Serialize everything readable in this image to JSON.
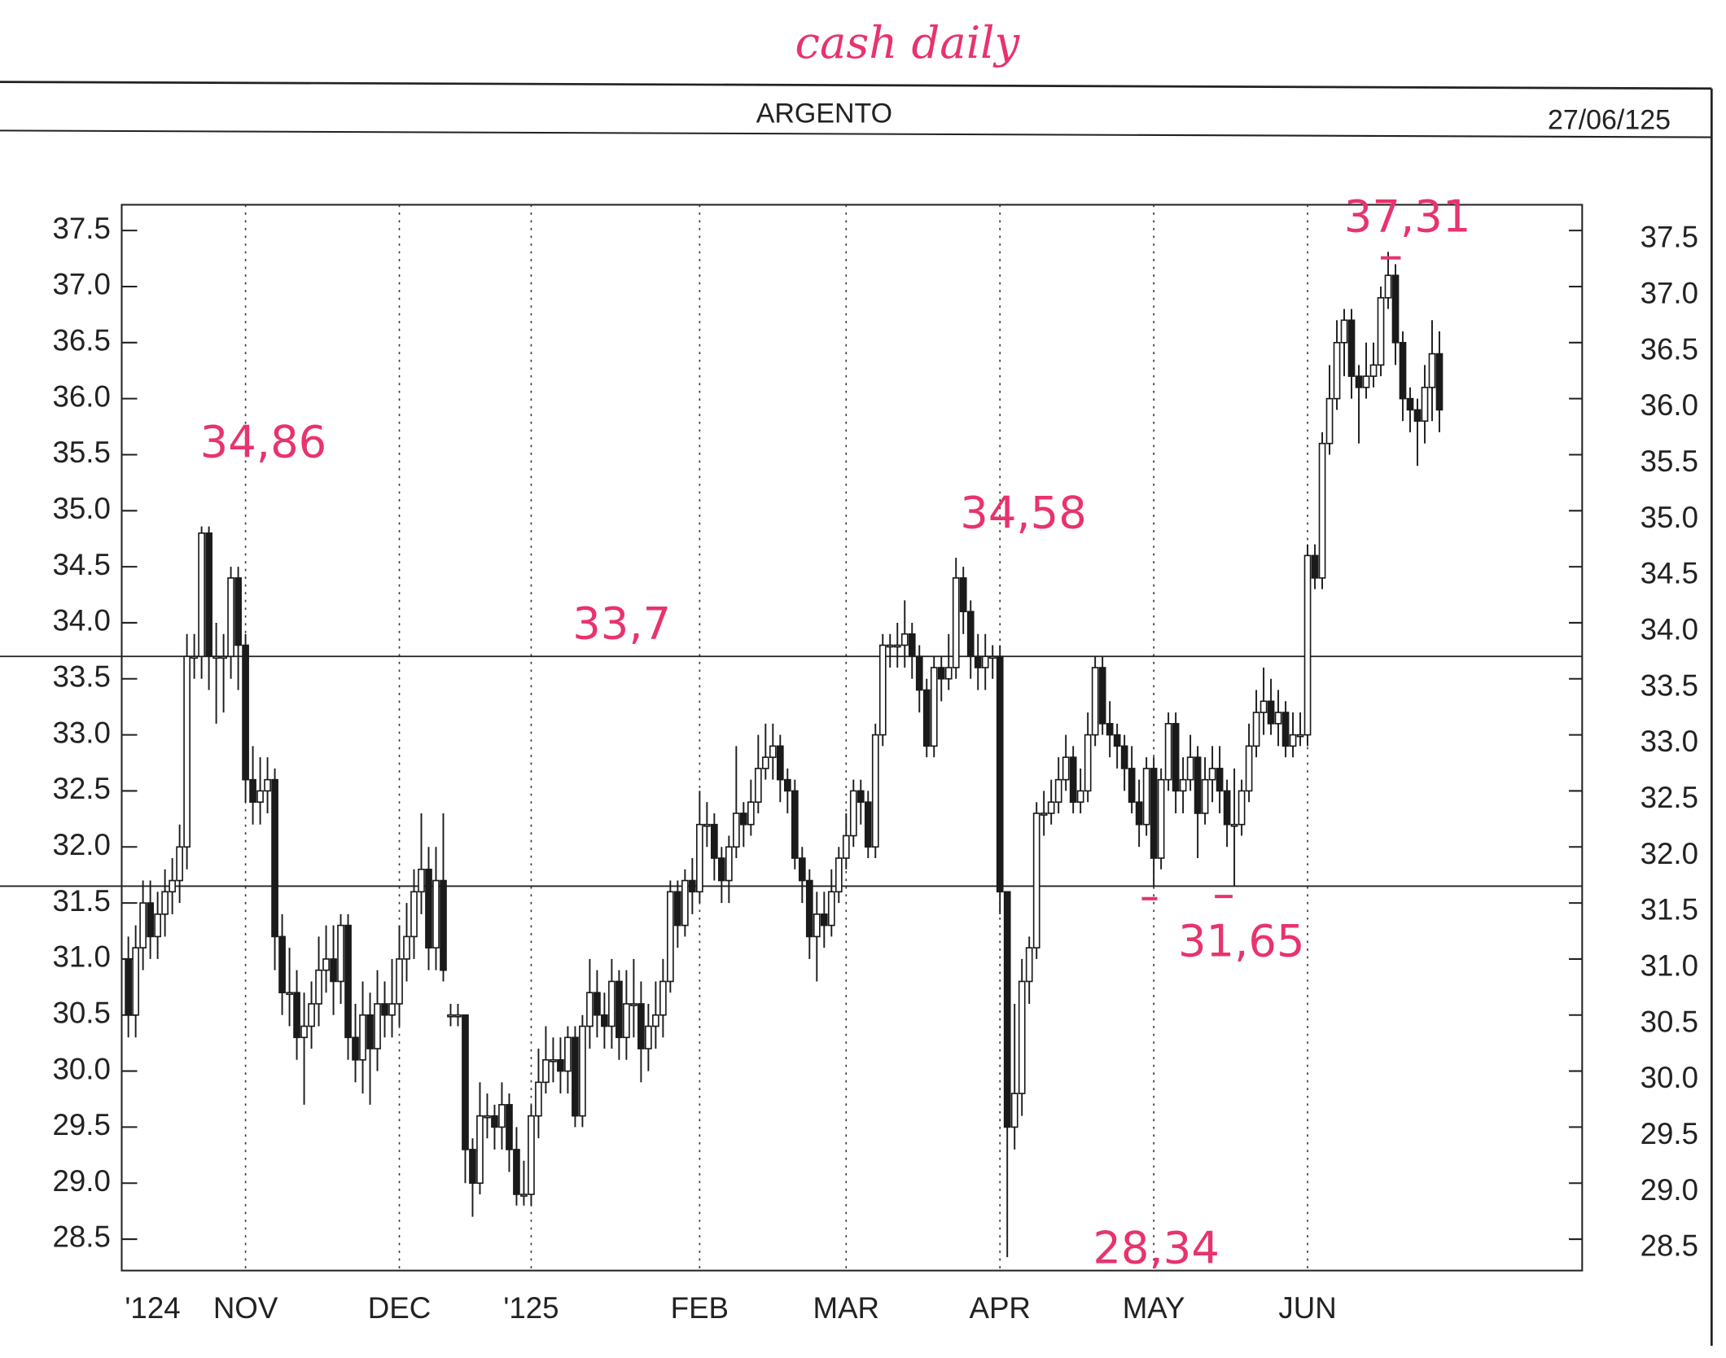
{
  "chart_data": {
    "type": "candlestick",
    "note": "cash daily",
    "title": "ARGENTO",
    "date_label": "27/06/125",
    "categories": [
      "'124",
      null,
      null,
      null,
      null,
      null,
      null,
      null,
      null,
      null,
      null,
      null,
      null,
      null,
      null,
      null,
      "NOV",
      null,
      null,
      null,
      null,
      null,
      null,
      null,
      null,
      null,
      null,
      null,
      null,
      null,
      null,
      null,
      null,
      null,
      null,
      null,
      null,
      "DEC",
      null,
      null,
      null,
      null,
      null,
      null,
      null,
      null,
      null,
      null,
      null,
      null,
      null,
      null,
      null,
      null,
      null,
      "'125",
      null,
      null,
      null,
      null,
      null,
      null,
      null,
      null,
      null,
      null,
      null,
      null,
      null,
      null,
      null,
      null,
      null,
      null,
      null,
      null,
      null,
      null,
      "FEB",
      null,
      null,
      null,
      null,
      null,
      null,
      null,
      null,
      null,
      null,
      null,
      null,
      null,
      null,
      null,
      null,
      null,
      null,
      null,
      "MAR",
      null,
      null,
      null,
      null,
      null,
      null,
      null,
      null,
      null,
      null,
      null,
      null,
      null,
      null,
      null,
      null,
      null,
      null,
      null,
      null,
      "APR",
      null,
      null,
      null,
      null,
      null,
      null,
      null,
      null,
      null,
      null,
      null,
      null,
      null,
      null,
      null,
      null,
      null,
      null,
      null,
      null,
      "MAY",
      null,
      null,
      null,
      null,
      null,
      null,
      null,
      null,
      null,
      null,
      null,
      null,
      null,
      null,
      null,
      null,
      null,
      null,
      null,
      null,
      "JUN",
      null,
      null,
      null,
      null,
      null,
      null,
      null,
      null,
      null,
      null,
      null,
      null,
      null,
      null,
      null,
      null,
      null,
      null
    ],
    "open": [
      31.0,
      30.5,
      31.1,
      31.5,
      31.2,
      31.4,
      31.6,
      31.7,
      32.0,
      33.7,
      33.7,
      34.8,
      33.7,
      33.7,
      33.7,
      34.4,
      33.8,
      32.6,
      32.4,
      32.5,
      32.6,
      31.2,
      30.7,
      30.7,
      30.3,
      30.4,
      30.6,
      30.9,
      31.0,
      30.8,
      31.3,
      30.3,
      30.1,
      30.5,
      30.2,
      30.6,
      30.5,
      30.6,
      31.0,
      31.2,
      31.6,
      31.8,
      31.1,
      31.7,
      30.5,
      30.5,
      30.5,
      29.3,
      29.0,
      29.6,
      29.6,
      29.5,
      29.7,
      29.3,
      28.9,
      28.9,
      29.6,
      29.9,
      30.1,
      30.1,
      30.0,
      30.3,
      29.6,
      30.4,
      30.7,
      30.5,
      30.4,
      30.8,
      30.3,
      30.6,
      30.6,
      30.2,
      30.4,
      30.5,
      30.8,
      31.6,
      31.3,
      31.7,
      31.6,
      32.2,
      32.2,
      31.9,
      31.7,
      32.0,
      32.3,
      32.2,
      32.4,
      32.7,
      32.8,
      32.9,
      32.6,
      32.5,
      31.9,
      31.7,
      31.2,
      31.4,
      31.3,
      31.6,
      31.9,
      32.1,
      32.5,
      32.4,
      32.0,
      33.0,
      33.8,
      33.8,
      33.8,
      33.9,
      33.7,
      33.4,
      32.9,
      33.6,
      33.5,
      33.6,
      34.4,
      34.1,
      33.7,
      33.6,
      33.7,
      33.7,
      31.6,
      29.5,
      29.8,
      30.8,
      31.1,
      32.3,
      32.3,
      32.4,
      32.6,
      32.8,
      32.4,
      32.5,
      33.0,
      33.6,
      33.1,
      33.0,
      32.9,
      32.7,
      32.4,
      32.2,
      32.7,
      31.9,
      32.6,
      33.1,
      32.5,
      32.6,
      32.8,
      32.3,
      32.6,
      32.7,
      32.5,
      32.2,
      32.2,
      32.5,
      32.9,
      33.2,
      33.3,
      33.1,
      33.2,
      32.9,
      33.0,
      33.0,
      34.6,
      34.4,
      35.6,
      36.0,
      36.5,
      36.7,
      36.2,
      36.1,
      36.2,
      36.3,
      36.9,
      37.1,
      36.5,
      36.0,
      35.9,
      35.8,
      36.1,
      36.4
    ],
    "high": [
      31.2,
      31.3,
      31.7,
      31.7,
      31.6,
      31.8,
      31.9,
      32.2,
      33.9,
      33.9,
      34.86,
      34.86,
      34.0,
      33.9,
      34.5,
      34.5,
      33.9,
      32.9,
      32.8,
      32.8,
      32.7,
      31.4,
      31.1,
      30.9,
      30.7,
      30.8,
      31.2,
      31.3,
      31.3,
      31.4,
      31.4,
      30.6,
      30.8,
      30.7,
      30.9,
      30.8,
      31.0,
      31.3,
      31.5,
      31.8,
      32.3,
      32.0,
      32.0,
      32.3,
      30.6,
      30.6,
      30.5,
      29.4,
      29.9,
      29.8,
      29.7,
      29.9,
      29.8,
      29.5,
      29.2,
      29.7,
      30.2,
      30.4,
      30.3,
      30.3,
      30.4,
      30.4,
      30.5,
      31.0,
      30.9,
      30.7,
      31.0,
      30.9,
      30.9,
      31.0,
      30.8,
      30.6,
      30.8,
      31.0,
      31.7,
      31.7,
      31.8,
      31.9,
      32.5,
      32.4,
      32.3,
      32.0,
      32.1,
      32.9,
      32.4,
      32.6,
      33.0,
      33.1,
      33.1,
      33.0,
      32.7,
      32.6,
      32.0,
      31.8,
      31.6,
      31.6,
      31.8,
      32.0,
      32.3,
      32.6,
      32.6,
      32.5,
      33.1,
      33.9,
      33.9,
      34.0,
      34.2,
      34.0,
      33.8,
      33.5,
      33.7,
      33.7,
      33.9,
      34.58,
      34.5,
      34.2,
      33.9,
      33.9,
      33.8,
      33.8,
      31.6,
      30.6,
      31.0,
      31.2,
      32.4,
      32.5,
      32.6,
      32.8,
      33.0,
      32.9,
      32.7,
      33.2,
      33.7,
      33.7,
      33.3,
      33.1,
      33.0,
      32.9,
      32.6,
      32.8,
      32.8,
      32.7,
      33.2,
      33.2,
      32.8,
      33.0,
      32.9,
      32.8,
      32.9,
      32.9,
      32.6,
      32.7,
      32.6,
      33.1,
      33.4,
      33.6,
      33.5,
      33.4,
      33.3,
      33.2,
      33.2,
      34.7,
      34.7,
      35.7,
      36.3,
      36.7,
      36.8,
      36.8,
      36.3,
      36.5,
      36.5,
      37.0,
      37.31,
      37.2,
      36.6,
      36.1,
      36.0,
      36.3,
      36.7,
      36.6
    ],
    "low": [
      30.3,
      30.3,
      30.9,
      31.0,
      31.0,
      31.2,
      31.4,
      31.5,
      31.8,
      33.5,
      33.5,
      33.4,
      33.1,
      33.2,
      33.5,
      33.4,
      32.4,
      32.2,
      32.2,
      32.3,
      30.9,
      30.5,
      30.4,
      30.1,
      29.7,
      30.2,
      30.4,
      30.7,
      30.5,
      30.6,
      30.1,
      29.9,
      29.8,
      29.7,
      30.0,
      30.3,
      30.3,
      30.4,
      30.8,
      31.0,
      31.4,
      30.9,
      30.9,
      30.8,
      30.4,
      30.4,
      29.0,
      28.7,
      28.9,
      29.4,
      29.3,
      29.3,
      29.1,
      28.8,
      28.8,
      28.8,
      29.4,
      29.8,
      29.9,
      29.8,
      29.8,
      29.5,
      29.5,
      30.2,
      30.3,
      30.2,
      30.2,
      30.1,
      30.1,
      30.3,
      29.9,
      30.0,
      30.2,
      30.3,
      30.7,
      31.1,
      31.2,
      31.4,
      31.5,
      32.0,
      31.7,
      31.5,
      31.5,
      31.9,
      32.0,
      32.1,
      32.3,
      32.6,
      32.6,
      32.4,
      32.3,
      31.8,
      31.5,
      31.0,
      30.8,
      31.1,
      31.2,
      31.5,
      31.8,
      32.0,
      32.2,
      31.9,
      31.9,
      32.9,
      33.6,
      33.6,
      33.6,
      33.5,
      33.2,
      32.8,
      32.8,
      33.3,
      33.4,
      33.5,
      33.9,
      33.5,
      33.4,
      33.4,
      33.5,
      31.4,
      28.34,
      29.3,
      29.6,
      30.6,
      31.0,
      32.1,
      32.2,
      32.3,
      32.5,
      32.3,
      32.3,
      32.4,
      32.9,
      33.0,
      32.8,
      32.7,
      32.5,
      32.3,
      32.0,
      32.1,
      31.65,
      31.8,
      32.5,
      32.3,
      32.3,
      32.5,
      31.9,
      32.2,
      32.4,
      32.3,
      32.0,
      31.65,
      32.1,
      32.4,
      32.8,
      33.0,
      33.0,
      32.9,
      32.8,
      32.8,
      32.9,
      32.9,
      34.3,
      34.3,
      35.5,
      35.9,
      36.2,
      36.0,
      35.6,
      36.0,
      36.1,
      36.2,
      36.8,
      36.3,
      35.8,
      35.7,
      35.4,
      35.6,
      35.8,
      35.7
    ],
    "close": [
      30.5,
      31.1,
      31.5,
      31.2,
      31.4,
      31.6,
      31.7,
      32.0,
      33.7,
      33.7,
      34.8,
      33.7,
      33.7,
      33.7,
      34.4,
      33.8,
      32.6,
      32.4,
      32.5,
      32.6,
      31.2,
      30.7,
      30.7,
      30.3,
      30.4,
      30.6,
      30.9,
      31.0,
      30.8,
      31.3,
      30.3,
      30.1,
      30.5,
      30.2,
      30.6,
      30.5,
      30.6,
      31.0,
      31.2,
      31.6,
      31.8,
      31.1,
      31.7,
      30.9,
      30.5,
      30.5,
      29.3,
      29.0,
      29.6,
      29.6,
      29.5,
      29.7,
      29.3,
      28.9,
      28.9,
      29.6,
      29.9,
      30.1,
      30.1,
      30.0,
      30.3,
      29.6,
      30.4,
      30.7,
      30.5,
      30.4,
      30.8,
      30.3,
      30.6,
      30.6,
      30.2,
      30.4,
      30.5,
      30.8,
      31.6,
      31.3,
      31.7,
      31.6,
      32.2,
      32.2,
      31.9,
      31.7,
      32.0,
      32.3,
      32.2,
      32.4,
      32.7,
      32.8,
      32.9,
      32.6,
      32.5,
      31.9,
      31.7,
      31.2,
      31.4,
      31.3,
      31.6,
      31.9,
      32.1,
      32.5,
      32.4,
      32.0,
      33.0,
      33.8,
      33.8,
      33.8,
      33.9,
      33.7,
      33.4,
      32.9,
      33.6,
      33.5,
      33.6,
      34.4,
      34.1,
      33.7,
      33.6,
      33.7,
      33.7,
      31.6,
      29.5,
      29.8,
      30.8,
      31.1,
      32.3,
      32.3,
      32.4,
      32.6,
      32.8,
      32.4,
      32.5,
      33.0,
      33.6,
      33.1,
      33.0,
      32.9,
      32.7,
      32.4,
      32.2,
      32.7,
      31.9,
      32.6,
      33.1,
      32.5,
      32.6,
      32.8,
      32.3,
      32.6,
      32.7,
      32.5,
      32.2,
      32.2,
      32.5,
      32.9,
      33.2,
      33.3,
      33.1,
      33.2,
      32.9,
      33.0,
      33.0,
      34.6,
      34.4,
      35.6,
      36.0,
      36.5,
      36.7,
      36.2,
      36.1,
      36.2,
      36.3,
      36.9,
      37.1,
      36.5,
      36.0,
      35.9,
      35.8,
      36.1,
      36.4,
      35.9
    ],
    "color": "#1a1a1a",
    "ylim": [
      28.22,
      37.73
    ],
    "yticks": [
      28.5,
      {
        "value": 29,
        "label": "29.0"
      },
      29.5,
      {
        "value": 30,
        "label": "30.0"
      },
      30.5,
      {
        "value": 31,
        "label": "31.0"
      },
      31.5,
      {
        "value": 32,
        "label": "32.0"
      },
      32.5,
      {
        "value": 33,
        "label": "33.0"
      },
      33.5,
      {
        "value": 34,
        "label": "34.0"
      },
      34.5,
      {
        "value": 35,
        "label": "35.0"
      },
      35.5,
      {
        "value": 36,
        "label": "36.0"
      },
      36.5,
      {
        "value": 37,
        "label": "37.0"
      },
      37.5
    ],
    "y2lim": [
      28.22,
      37.73
    ],
    "y2ticks": [
      28.5,
      {
        "value": 29,
        "label": "29.0"
      },
      29.5,
      {
        "value": 30,
        "label": "30.0"
      },
      30.5,
      {
        "value": 31,
        "label": "31.0"
      },
      31.5,
      {
        "value": 32,
        "label": "32.0"
      },
      32.5,
      {
        "value": 33,
        "label": "33.0"
      },
      33.5,
      {
        "value": 34,
        "label": "34.0"
      },
      34.5,
      {
        "value": 35,
        "label": "35.0"
      },
      35.5,
      {
        "value": 36,
        "label": "36.0"
      },
      36.5,
      {
        "value": 37,
        "label": "37.0"
      },
      37.5
    ],
    "hlines": [
      33.7,
      31.65
    ],
    "annotations": [
      "34,86",
      "33,7",
      "34,58",
      "31,65",
      "28,34",
      "37,31"
    ]
  }
}
